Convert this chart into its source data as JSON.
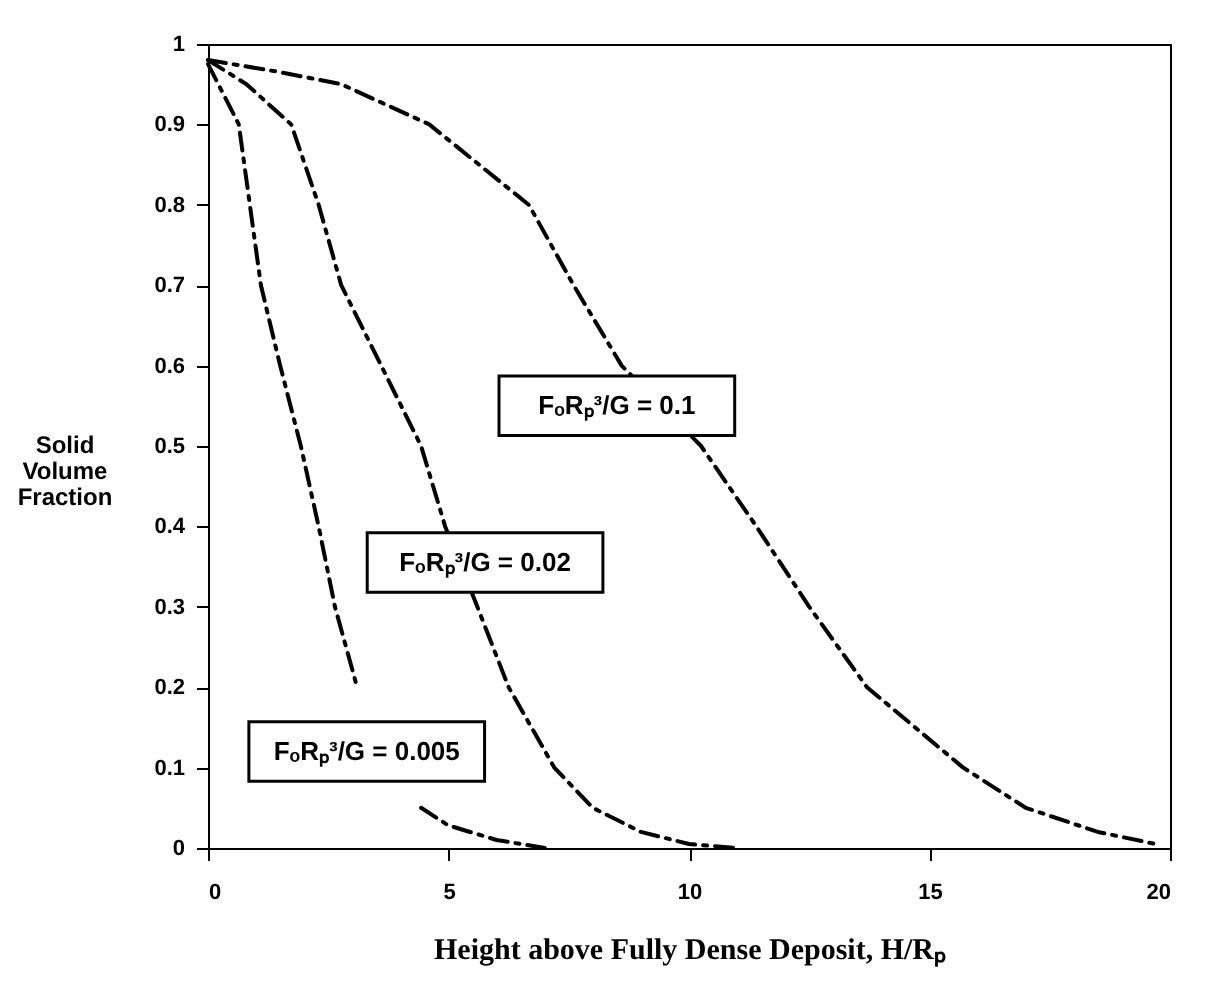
{
  "chart_data": {
    "type": "line",
    "xlabel": "Height above Fully Dense Deposit, H/Rₚ",
    "ylabel": "Solid Volume Fraction",
    "xlim": [
      0,
      20
    ],
    "ylim": [
      0,
      1
    ],
    "xticks": [
      0,
      5,
      10,
      15,
      20
    ],
    "yticks": [
      0,
      0.1,
      0.2,
      0.3,
      0.4,
      0.5,
      0.6,
      0.7,
      0.8,
      0.9,
      1
    ],
    "grid": false,
    "legend": false,
    "line_style": "dashed",
    "marker": "none",
    "series": [
      {
        "name": "FₒRₚ³/G = 0.005",
        "color": "#000000",
        "x": [
          0,
          0.3,
          0.64,
          1.1,
          1.5,
          1.93,
          2.3,
          2.64,
          3.1,
          3.6,
          4.43,
          5,
          6,
          7
        ],
        "values": [
          0.975,
          0.94,
          0.9,
          0.7,
          0.6,
          0.5,
          0.4,
          0.3,
          0.2,
          null,
          0.05,
          0.028,
          0.01,
          0
        ]
      },
      {
        "name": "FₒRₚ³/G = 0.02",
        "color": "#000000",
        "x": [
          0,
          0.8,
          1.73,
          2.3,
          2.77,
          3.6,
          4.43,
          4.93,
          5.6,
          6.25,
          7.2,
          8,
          9,
          10,
          11
        ],
        "values": [
          0.98,
          0.95,
          0.9,
          0.8,
          0.7,
          0.6,
          0.5,
          0.4,
          0.3,
          0.2,
          0.1,
          0.05,
          0.02,
          0.005,
          0
        ]
      },
      {
        "name": "FₒRₚ³/G = 0.1",
        "color": "#000000",
        "x": [
          0,
          1.5,
          2.77,
          4.6,
          6.67,
          7.6,
          8.6,
          10.25,
          11.4,
          12.5,
          13.7,
          15.7,
          17,
          18.5,
          19.7
        ],
        "values": [
          0.98,
          0.965,
          0.95,
          0.9,
          0.8,
          0.7,
          0.6,
          0.5,
          0.4,
          0.3,
          0.2,
          0.1,
          0.05,
          0.02,
          0.005
        ]
      }
    ]
  }
}
